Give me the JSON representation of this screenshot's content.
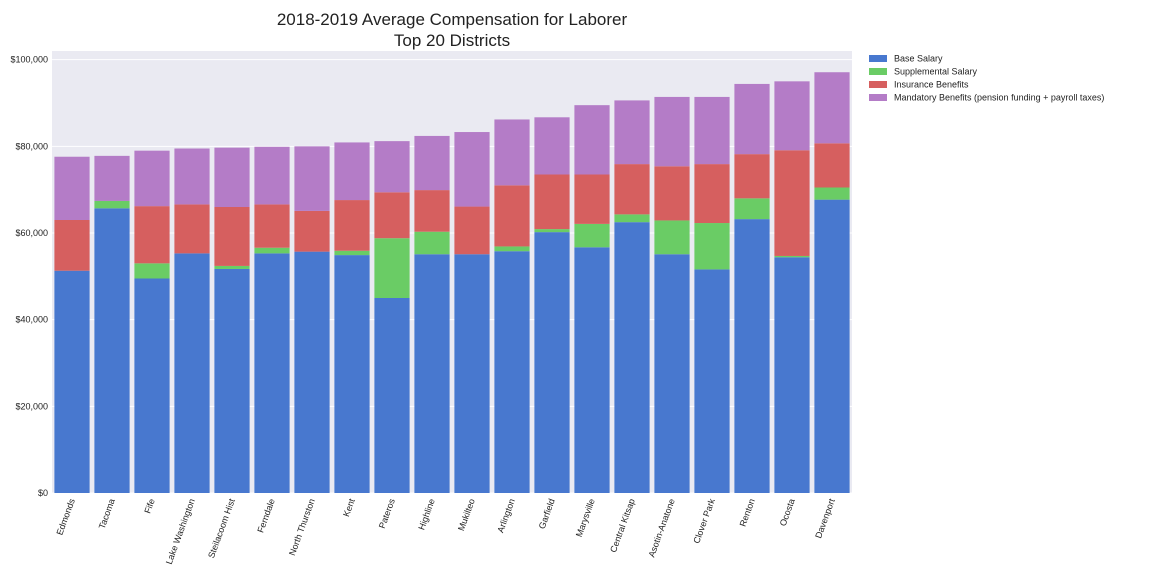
{
  "chart_data": {
    "type": "bar",
    "stacked": true,
    "title": [
      "2018-2019 Average Compensation for Laborer",
      "Top 20 Districts"
    ],
    "xlabel": "",
    "ylabel": "",
    "ylim": [
      0,
      102000
    ],
    "yticks": [
      0,
      20000,
      40000,
      60000,
      80000,
      100000
    ],
    "ytick_labels": [
      "$0",
      "$20,000",
      "$40,000",
      "$60,000",
      "$80,000",
      "$100,000"
    ],
    "grid": true,
    "legend_position": "outside-top-right",
    "categories": [
      "Edmonds",
      "Tacoma",
      "Fife",
      "Lake Washington",
      "Steilacoom Hist",
      "Ferndale",
      "North Thurston",
      "Kent",
      "Pateros",
      "Highline",
      "Mukilteo",
      "Arlington",
      "Garfield",
      "Marysville",
      "Central Kitsap",
      "Asotin-Anatone",
      "Clover Park",
      "Renton",
      "Ocosta",
      "Davenport"
    ],
    "series": [
      {
        "name": "Base Salary",
        "color": "#4878cf",
        "values": [
          51300,
          65700,
          49500,
          55300,
          51700,
          55300,
          55700,
          54900,
          45000,
          55100,
          55100,
          55800,
          60200,
          56700,
          62500,
          55100,
          51600,
          63200,
          54400,
          67700
        ]
      },
      {
        "name": "Supplemental Salary",
        "color": "#6acc65",
        "values": [
          0,
          1700,
          3500,
          0,
          700,
          1300,
          0,
          1000,
          13800,
          5200,
          0,
          1100,
          700,
          5400,
          1800,
          7800,
          10700,
          4800,
          300,
          2800
        ]
      },
      {
        "name": "Insurance Benefits",
        "color": "#d65f5f",
        "values": [
          11700,
          0,
          13200,
          11300,
          13600,
          10000,
          9400,
          11700,
          10600,
          9600,
          11000,
          14100,
          12600,
          11400,
          11600,
          12500,
          13600,
          10200,
          24400,
          10200
        ]
      },
      {
        "name": "Mandatory Benefits (pension funding + payroll taxes)",
        "color": "#b47cc7",
        "values": [
          14600,
          10400,
          12800,
          12900,
          13700,
          13300,
          14900,
          13300,
          11800,
          12500,
          17200,
          15200,
          13200,
          16000,
          14700,
          16000,
          15500,
          16200,
          15900,
          16400
        ]
      }
    ]
  }
}
